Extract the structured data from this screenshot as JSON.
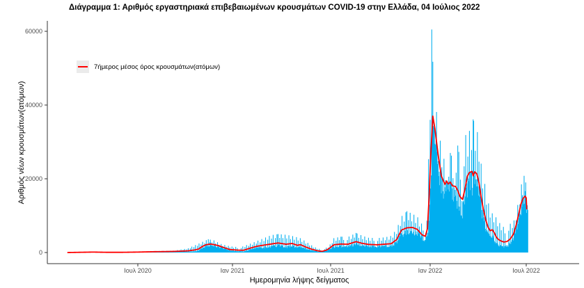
{
  "chart_data": {
    "type": "bar",
    "title": "Διάγραμμα 1: Αριθμός εργαστηριακά επιβεβαιωμένων κρουσμάτων COVID-19 στην Ελλάδα, 04 Ιούλιος 2022",
    "xlabel": "Ημερομηνία λήψης δείγματος",
    "ylabel": "Αριθμός νέων κρουσμάτων(ατόμων)",
    "legend": {
      "label": "7ήμερος μέσος όρος κρουσμάτων(ατόμων)",
      "position": "inside-top-left"
    },
    "grid": false,
    "background": "#FFFFFF",
    "colors": {
      "bars": "#00AEEF",
      "avg_line": "#FF0000",
      "axis_line": "#333333",
      "tick_text": "#4D4D4D",
      "legend_key_bg": "#EBEBEB",
      "title_text": "#000000"
    },
    "ylim": [
      0,
      62000
    ],
    "yticks": [
      {
        "value": 0,
        "label": "0"
      },
      {
        "value": 20000,
        "label": "20000"
      },
      {
        "value": 40000,
        "label": "40000"
      },
      {
        "value": 60000,
        "label": "60000"
      }
    ],
    "xticks": [
      {
        "date": "2020-07-01",
        "label": "Ιουλ 2020"
      },
      {
        "date": "2021-01-01",
        "label": "Ιαν 2021"
      },
      {
        "date": "2021-07-01",
        "label": "Ιουλ 2021"
      },
      {
        "date": "2022-01-01",
        "label": "Ιαν 2022"
      },
      {
        "date": "2022-07-01",
        "label": "Ιουλ 2022"
      }
    ],
    "x_range": [
      "2020-02-15",
      "2022-07-04"
    ],
    "series": [
      {
        "name": "avg_7day_cases",
        "type": "line",
        "color": "#FF0000",
        "points": [
          [
            "2020-02-15",
            0
          ],
          [
            "2020-03-10",
            60
          ],
          [
            "2020-04-05",
            120
          ],
          [
            "2020-05-01",
            60
          ],
          [
            "2020-06-01",
            60
          ],
          [
            "2020-07-01",
            120
          ],
          [
            "2020-08-01",
            220
          ],
          [
            "2020-08-20",
            250
          ],
          [
            "2020-09-09",
            300
          ],
          [
            "2020-10-06",
            450
          ],
          [
            "2020-10-20",
            700
          ],
          [
            "2020-10-27",
            950
          ],
          [
            "2020-11-03",
            1600
          ],
          [
            "2020-11-10",
            2100
          ],
          [
            "2020-11-19",
            2300
          ],
          [
            "2020-11-26",
            2150
          ],
          [
            "2020-12-05",
            1850
          ],
          [
            "2020-12-15",
            1350
          ],
          [
            "2020-12-27",
            800
          ],
          [
            "2021-01-10",
            650
          ],
          [
            "2021-01-21",
            600
          ],
          [
            "2021-02-03",
            1200
          ],
          [
            "2021-02-15",
            1700
          ],
          [
            "2021-02-28",
            2000
          ],
          [
            "2021-03-13",
            2300
          ],
          [
            "2021-03-26",
            2600
          ],
          [
            "2021-04-10",
            2250
          ],
          [
            "2021-04-21",
            2450
          ],
          [
            "2021-05-01",
            1950
          ],
          [
            "2021-05-06",
            2150
          ],
          [
            "2021-05-16",
            1500
          ],
          [
            "2021-05-27",
            900
          ],
          [
            "2021-06-06",
            500
          ],
          [
            "2021-06-15",
            300
          ],
          [
            "2021-06-24",
            700
          ],
          [
            "2021-07-01",
            1400
          ],
          [
            "2021-07-07",
            2100
          ],
          [
            "2021-07-20",
            2300
          ],
          [
            "2021-08-02",
            2250
          ],
          [
            "2021-08-17",
            2950
          ],
          [
            "2021-08-28",
            2500
          ],
          [
            "2021-09-09",
            2200
          ],
          [
            "2021-09-25",
            2100
          ],
          [
            "2021-10-08",
            2250
          ],
          [
            "2021-10-21",
            2400
          ],
          [
            "2021-10-31",
            3500
          ],
          [
            "2021-11-09",
            6100
          ],
          [
            "2021-11-19",
            6700
          ],
          [
            "2021-11-29",
            6800
          ],
          [
            "2021-12-08",
            6300
          ],
          [
            "2021-12-17",
            4800
          ],
          [
            "2021-12-23",
            4400
          ],
          [
            "2021-12-27",
            6500
          ],
          [
            "2021-12-30",
            15000
          ],
          [
            "2022-01-02",
            26000
          ],
          [
            "2022-01-06",
            37000
          ],
          [
            "2022-01-10",
            33500
          ],
          [
            "2022-01-16",
            26500
          ],
          [
            "2022-01-22",
            20800
          ],
          [
            "2022-01-26",
            19400
          ],
          [
            "2022-01-29",
            18500
          ],
          [
            "2022-02-01",
            19400
          ],
          [
            "2022-02-04",
            18600
          ],
          [
            "2022-02-08",
            19100
          ],
          [
            "2022-02-12",
            18100
          ],
          [
            "2022-02-18",
            17900
          ],
          [
            "2022-02-22",
            16800
          ],
          [
            "2022-02-26",
            15200
          ],
          [
            "2022-03-03",
            14400
          ],
          [
            "2022-03-08",
            17500
          ],
          [
            "2022-03-12",
            20700
          ],
          [
            "2022-03-16",
            21700
          ],
          [
            "2022-03-21",
            22000
          ],
          [
            "2022-03-23",
            20800
          ],
          [
            "2022-03-26",
            21900
          ],
          [
            "2022-03-30",
            21300
          ],
          [
            "2022-04-03",
            18900
          ],
          [
            "2022-04-07",
            15100
          ],
          [
            "2022-04-11",
            11900
          ],
          [
            "2022-04-16",
            8700
          ],
          [
            "2022-04-20",
            6900
          ],
          [
            "2022-04-24",
            5900
          ],
          [
            "2022-04-28",
            6200
          ],
          [
            "2022-05-02",
            5300
          ],
          [
            "2022-05-06",
            4100
          ],
          [
            "2022-05-10",
            3500
          ],
          [
            "2022-05-15",
            3100
          ],
          [
            "2022-05-20",
            2850
          ],
          [
            "2022-05-26",
            3000
          ],
          [
            "2022-06-01",
            3700
          ],
          [
            "2022-06-07",
            5000
          ],
          [
            "2022-06-12",
            7400
          ],
          [
            "2022-06-17",
            10500
          ],
          [
            "2022-06-21",
            13100
          ],
          [
            "2022-06-25",
            14700
          ],
          [
            "2022-06-29",
            15300
          ],
          [
            "2022-07-01",
            14800
          ],
          [
            "2022-07-02",
            11700
          ]
        ]
      },
      {
        "name": "daily_cases_bar_peak_envelope",
        "type": "bar",
        "color": "#00AEEF",
        "points": [
          [
            "2020-02-15",
            20
          ],
          [
            "2020-04-01",
            150
          ],
          [
            "2020-06-01",
            110
          ],
          [
            "2020-08-01",
            380
          ],
          [
            "2020-09-09",
            520
          ],
          [
            "2020-10-06",
            1100
          ],
          [
            "2020-10-27",
            2400
          ],
          [
            "2020-11-15",
            3600
          ],
          [
            "2020-11-26",
            3300
          ],
          [
            "2020-12-10",
            2300
          ],
          [
            "2020-12-27",
            1700
          ],
          [
            "2021-01-15",
            1400
          ],
          [
            "2021-02-03",
            2400
          ],
          [
            "2021-02-20",
            3400
          ],
          [
            "2021-03-13",
            4700
          ],
          [
            "2021-03-26",
            5000
          ],
          [
            "2021-04-10",
            4800
          ],
          [
            "2021-04-21",
            4500
          ],
          [
            "2021-05-06",
            3900
          ],
          [
            "2021-05-16",
            3000
          ],
          [
            "2021-06-01",
            1500
          ],
          [
            "2021-06-15",
            700
          ],
          [
            "2021-06-28",
            1700
          ],
          [
            "2021-07-07",
            3900
          ],
          [
            "2021-07-20",
            4300
          ],
          [
            "2021-08-02",
            4200
          ],
          [
            "2021-08-17",
            5300
          ],
          [
            "2021-08-28",
            4600
          ],
          [
            "2021-09-09",
            4000
          ],
          [
            "2021-09-25",
            3900
          ],
          [
            "2021-10-08",
            4100
          ],
          [
            "2021-10-21",
            4500
          ],
          [
            "2021-10-31",
            6300
          ],
          [
            "2021-11-09",
            9800
          ],
          [
            "2021-11-19",
            11200
          ],
          [
            "2021-11-29",
            10500
          ],
          [
            "2021-12-08",
            9800
          ],
          [
            "2021-12-17",
            7600
          ],
          [
            "2021-12-23",
            7200
          ],
          [
            "2021-12-27",
            12000
          ],
          [
            "2021-12-30",
            32000
          ],
          [
            "2022-01-01",
            45000
          ],
          [
            "2022-01-04",
            60500
          ],
          [
            "2022-01-08",
            43000
          ],
          [
            "2022-01-12",
            40500
          ],
          [
            "2022-01-16",
            31000
          ],
          [
            "2022-01-22",
            30000
          ],
          [
            "2022-01-26",
            25700
          ],
          [
            "2022-02-01",
            24000
          ],
          [
            "2022-02-08",
            27000
          ],
          [
            "2022-02-15",
            24500
          ],
          [
            "2022-02-22",
            29000
          ],
          [
            "2022-03-01",
            23000
          ],
          [
            "2022-03-08",
            31700
          ],
          [
            "2022-03-16",
            33000
          ],
          [
            "2022-03-23",
            36100
          ],
          [
            "2022-03-30",
            33300
          ],
          [
            "2022-04-03",
            30800
          ],
          [
            "2022-04-07",
            24100
          ],
          [
            "2022-04-13",
            19400
          ],
          [
            "2022-04-20",
            13800
          ],
          [
            "2022-04-26",
            10900
          ],
          [
            "2022-05-03",
            10000
          ],
          [
            "2022-05-12",
            8000
          ],
          [
            "2022-05-22",
            6500
          ],
          [
            "2022-06-01",
            7800
          ],
          [
            "2022-06-08",
            8700
          ],
          [
            "2022-06-14",
            12000
          ],
          [
            "2022-06-18",
            15600
          ],
          [
            "2022-06-22",
            18500
          ],
          [
            "2022-06-27",
            20800
          ],
          [
            "2022-06-30",
            19000
          ],
          [
            "2022-07-04",
            15000
          ]
        ]
      }
    ]
  }
}
